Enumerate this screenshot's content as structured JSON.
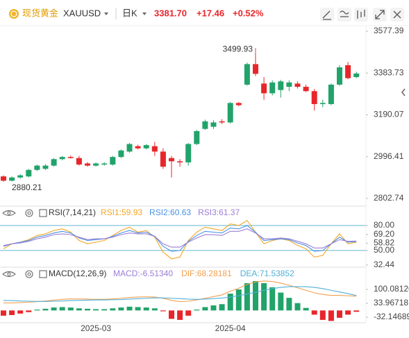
{
  "header": {
    "name": "现货黄金",
    "symbol": "XAUUSD",
    "period": "日K",
    "price": "3381.70",
    "change": "+17.46",
    "change_pct": "+0.52%"
  },
  "chart_data": [
    {
      "type": "candlestick",
      "up_color": "#21a36a",
      "down_color": "#e8262a",
      "ylim": [
        2773.8,
        3593.4
      ],
      "yticks": [
        3577.39,
        3383.73,
        3190.07,
        2996.41,
        2802.74
      ],
      "series": [
        {
          "open": [
            2905,
            2885,
            2900,
            2905,
            2935,
            2940,
            2955,
            2985,
            2995,
            2990,
            2965,
            2955,
            2960,
            2960,
            2995,
            3020,
            3045,
            3035,
            3045,
            3020,
            2990,
            2975,
            2970,
            3055,
            3125,
            3135,
            3160,
            3155,
            3245,
            3330,
            3425,
            3335,
            3290,
            3305,
            3320,
            3335,
            3320,
            3300,
            3240,
            3240,
            3330,
            3420,
            3365
          ],
          "high": [
            2910,
            2905,
            2915,
            2940,
            2960,
            2962,
            2990,
            3000,
            3002,
            3000,
            2972,
            2970,
            2970,
            3000,
            3030,
            3060,
            3052,
            3055,
            3065,
            3035,
            3000,
            2985,
            3060,
            3120,
            3168,
            3165,
            3170,
            3250,
            3250,
            3432,
            3499.93,
            3365,
            3350,
            3352,
            3350,
            3345,
            3330,
            3310,
            3260,
            3335,
            3420,
            3435,
            3390
          ],
          "low": [
            2880.21,
            2882,
            2895,
            2900,
            2930,
            2935,
            2950,
            2980,
            2988,
            2955,
            2950,
            2950,
            2955,
            2955,
            2990,
            3015,
            3030,
            3030,
            3000,
            2940,
            2900,
            2950,
            2955,
            3050,
            3120,
            3125,
            3148,
            3150,
            3230,
            3325,
            3370,
            3260,
            3280,
            3270,
            3300,
            3312,
            3295,
            3210,
            3225,
            3235,
            3325,
            3355,
            3360
          ],
          "close": [
            2885,
            2900,
            2910,
            2935,
            2955,
            2955,
            2985,
            2995,
            2990,
            2960,
            2955,
            2965,
            2965,
            2995,
            3025,
            3055,
            3035,
            3050,
            3020,
            2950,
            2975,
            2970,
            3055,
            3115,
            3160,
            3155,
            3155,
            3245,
            3235,
            3425,
            3380,
            3290,
            3340,
            3345,
            3340,
            3320,
            3300,
            3240,
            3245,
            3330,
            3410,
            3360,
            3381.7
          ]
        }
      ]
    },
    {
      "type": "line",
      "title": "RSI(7,14,21)",
      "ylim": [
        30.7,
        98.3
      ],
      "grid": true,
      "grid_color": "#5fb7d4",
      "yticks": [
        {
          "value": 80,
          "label": "80.00"
        },
        {
          "value": 50,
          "label": "50.00"
        }
      ],
      "axis_markers": [
        {
          "value": 69.2,
          "label": "69.20"
        },
        58.82,
        32.44
      ],
      "series": [
        {
          "name": "RSI1:59.93",
          "color": "#f5a623",
          "values": [
            52,
            58,
            60,
            63,
            68,
            70,
            74,
            76,
            72,
            62,
            58,
            60,
            62,
            68,
            74,
            78,
            72,
            74,
            66,
            48,
            40,
            42,
            62,
            72,
            78,
            76,
            74,
            82,
            80,
            86,
            72,
            58,
            62,
            64,
            62,
            56,
            52,
            42,
            44,
            58,
            70,
            58,
            59.93
          ]
        },
        {
          "name": "RSI2:60.63",
          "color": "#4a90e2",
          "values": [
            55,
            58,
            60,
            62,
            66,
            68,
            71,
            73,
            71,
            65,
            62,
            63,
            64,
            67,
            71,
            74,
            71,
            72,
            67,
            55,
            49,
            50,
            61,
            68,
            73,
            72,
            71,
            77,
            76,
            80,
            72,
            62,
            63,
            64,
            63,
            59,
            56,
            49,
            50,
            58,
            66,
            60,
            60.63
          ]
        },
        {
          "name": "RSI3:61.37",
          "color": "#9b7ed6",
          "values": [
            56,
            58,
            59,
            61,
            64,
            66,
            69,
            70,
            69,
            66,
            63,
            64,
            64,
            66,
            69,
            71,
            70,
            70,
            67,
            58,
            54,
            54,
            60,
            65,
            69,
            69,
            68,
            73,
            73,
            76,
            71,
            64,
            64,
            65,
            64,
            61,
            58,
            53,
            53,
            58,
            63,
            61,
            61.37
          ]
        }
      ]
    },
    {
      "type": "macd",
      "title": "MACD(12,26,9)",
      "ylim": [
        -58.5,
        196
      ],
      "yticks": [
        100.08126,
        33.96718,
        -32.14689
      ],
      "up_color": "#21a36a",
      "down_color": "#e8262a",
      "categories": [
        null,
        null,
        null,
        null,
        null,
        null,
        null,
        null,
        null,
        null,
        null,
        "2025-03",
        null,
        null,
        null,
        null,
        null,
        null,
        null,
        null,
        null,
        null,
        null,
        null,
        null,
        null,
        null,
        "2025-04",
        null,
        null,
        null,
        null,
        null,
        null,
        null,
        null,
        null,
        null,
        null,
        null,
        null,
        null,
        null
      ],
      "series": [
        {
          "name": "MACD:-6.51340",
          "color": "#9b7ed6",
          "bar": true,
          "values": [
            -25,
            -22,
            -15,
            -8,
            4,
            8,
            14,
            16,
            14,
            10,
            8,
            6,
            6,
            10,
            14,
            18,
            16,
            14,
            10,
            -4,
            -40,
            -45,
            -25,
            4,
            16,
            24,
            30,
            80,
            100,
            130,
            140,
            130,
            110,
            85,
            60,
            35,
            12,
            -20,
            -45,
            -50,
            -35,
            -20,
            -6.5134
          ]
        },
        {
          "name": "DIF:68.28181",
          "color": "#f0a050",
          "values": [
            36,
            36,
            37,
            39,
            42,
            45,
            49,
            53,
            55,
            55,
            54,
            53,
            53,
            55,
            58,
            62,
            64,
            65,
            64,
            58,
            48,
            42,
            44,
            50,
            58,
            66,
            74,
            92,
            106,
            124,
            136,
            140,
            138,
            130,
            120,
            108,
            96,
            84,
            76,
            72,
            72,
            70,
            68.28181
          ]
        },
        {
          "name": "DEA:71.53852",
          "color": "#4fb0d8",
          "values": [
            48,
            47,
            45,
            44,
            43,
            43,
            44,
            45,
            47,
            48,
            49,
            50,
            50,
            51,
            52,
            54,
            56,
            58,
            60,
            60,
            58,
            56,
            54,
            53,
            54,
            56,
            59,
            64,
            70,
            78,
            87,
            96,
            104,
            110,
            113,
            113,
            113,
            110,
            104,
            96,
            88,
            80,
            71.53852
          ]
        }
      ]
    }
  ]
}
